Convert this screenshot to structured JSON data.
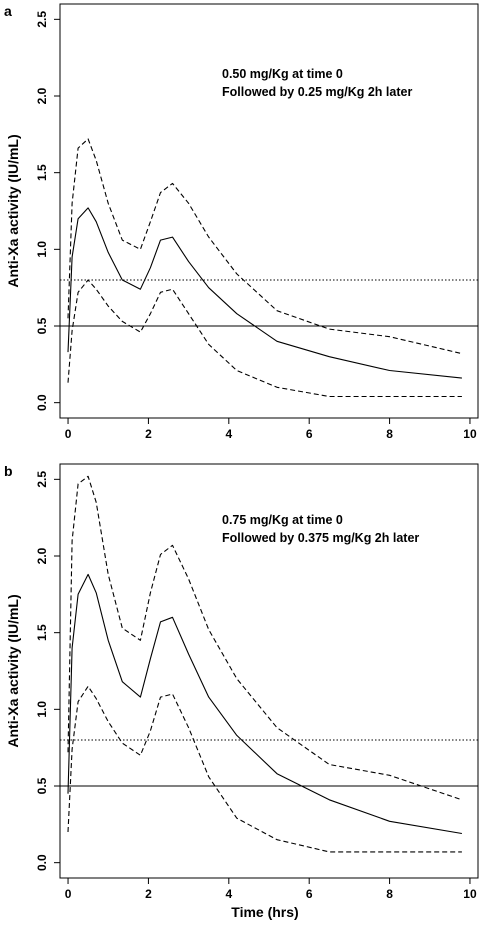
{
  "chart_data": [
    {
      "type": "line",
      "panel_label": "a",
      "ylabel": "Anti-Xa activity (IU/mL)",
      "xlabel": "",
      "xlim": [
        -0.2,
        10.2
      ],
      "ylim": [
        -0.1,
        2.6
      ],
      "xticks": [
        "0",
        "2",
        "4",
        "6",
        "8",
        "10"
      ],
      "yticks": [
        "0.0",
        "0.5",
        "1.0",
        "1.5",
        "2.0",
        "2.5"
      ],
      "annotation": [
        "0.50 mg/Kg at time 0",
        "Followed by 0.25 mg/Kg 2h later"
      ],
      "reference_lines": [
        {
          "style": "dotted",
          "y": 0.8
        },
        {
          "style": "solid",
          "y": 0.5
        }
      ],
      "series": [
        {
          "style": "solid",
          "x": [
            0,
            0.1,
            0.25,
            0.5,
            0.7,
            1.0,
            1.35,
            1.8,
            2.05,
            2.3,
            2.6,
            3.0,
            3.5,
            4.2,
            5.2,
            6.5,
            8.0,
            9.8
          ],
          "y": [
            0.33,
            0.95,
            1.2,
            1.27,
            1.18,
            0.98,
            0.8,
            0.74,
            0.88,
            1.06,
            1.08,
            0.92,
            0.75,
            0.58,
            0.4,
            0.3,
            0.21,
            0.16
          ]
        },
        {
          "style": "dashed",
          "x": [
            0,
            0.1,
            0.25,
            0.5,
            0.7,
            1.0,
            1.35,
            1.8,
            2.05,
            2.3,
            2.6,
            3.0,
            3.5,
            4.2,
            5.2,
            6.5,
            8.0,
            9.8
          ],
          "y": [
            0.55,
            1.3,
            1.66,
            1.72,
            1.58,
            1.3,
            1.06,
            1.0,
            1.18,
            1.37,
            1.43,
            1.3,
            1.08,
            0.84,
            0.6,
            0.48,
            0.43,
            0.32
          ]
        },
        {
          "style": "dashed",
          "x": [
            0,
            0.1,
            0.25,
            0.5,
            0.7,
            1.0,
            1.35,
            1.8,
            2.05,
            2.3,
            2.6,
            3.0,
            3.5,
            4.2,
            5.2,
            6.5,
            8.0,
            9.8
          ],
          "y": [
            0.13,
            0.47,
            0.72,
            0.8,
            0.74,
            0.63,
            0.53,
            0.46,
            0.58,
            0.72,
            0.74,
            0.58,
            0.38,
            0.21,
            0.1,
            0.04,
            0.04,
            0.04
          ]
        }
      ]
    },
    {
      "type": "line",
      "panel_label": "b",
      "ylabel": "Anti-Xa activity (IU/mL)",
      "xlabel": "Time (hrs)",
      "xlim": [
        -0.2,
        10.2
      ],
      "ylim": [
        -0.1,
        2.6
      ],
      "xticks": [
        "0",
        "2",
        "4",
        "6",
        "8",
        "10"
      ],
      "yticks": [
        "0.0",
        "0.5",
        "1.0",
        "1.5",
        "2.0",
        "2.5"
      ],
      "annotation": [
        "0.75 mg/Kg at time 0",
        "Followed by 0.375 mg/Kg 2h later"
      ],
      "reference_lines": [
        {
          "style": "dotted",
          "y": 0.8
        },
        {
          "style": "solid",
          "y": 0.5
        }
      ],
      "series": [
        {
          "style": "solid",
          "x": [
            0,
            0.1,
            0.25,
            0.5,
            0.7,
            1.0,
            1.35,
            1.8,
            2.05,
            2.3,
            2.6,
            3.0,
            3.5,
            4.2,
            5.2,
            6.5,
            8.0,
            9.8
          ],
          "y": [
            0.45,
            1.4,
            1.75,
            1.88,
            1.76,
            1.45,
            1.18,
            1.08,
            1.33,
            1.57,
            1.6,
            1.36,
            1.08,
            0.83,
            0.58,
            0.41,
            0.27,
            0.19
          ]
        },
        {
          "style": "dashed",
          "x": [
            0,
            0.1,
            0.25,
            0.5,
            0.7,
            1.0,
            1.35,
            1.8,
            2.05,
            2.3,
            2.6,
            3.0,
            3.5,
            4.2,
            5.2,
            6.5,
            8.0,
            9.8
          ],
          "y": [
            0.72,
            2.1,
            2.47,
            2.52,
            2.35,
            1.88,
            1.53,
            1.45,
            1.76,
            2.01,
            2.07,
            1.85,
            1.52,
            1.2,
            0.88,
            0.64,
            0.57,
            0.41
          ]
        },
        {
          "style": "dashed",
          "x": [
            0,
            0.1,
            0.25,
            0.5,
            0.7,
            1.0,
            1.35,
            1.8,
            2.05,
            2.3,
            2.6,
            3.0,
            3.5,
            4.2,
            5.2,
            6.5,
            8.0,
            9.8
          ],
          "y": [
            0.2,
            0.74,
            1.05,
            1.15,
            1.07,
            0.92,
            0.78,
            0.7,
            0.86,
            1.08,
            1.1,
            0.88,
            0.56,
            0.29,
            0.15,
            0.07,
            0.07,
            0.07
          ]
        }
      ]
    }
  ]
}
